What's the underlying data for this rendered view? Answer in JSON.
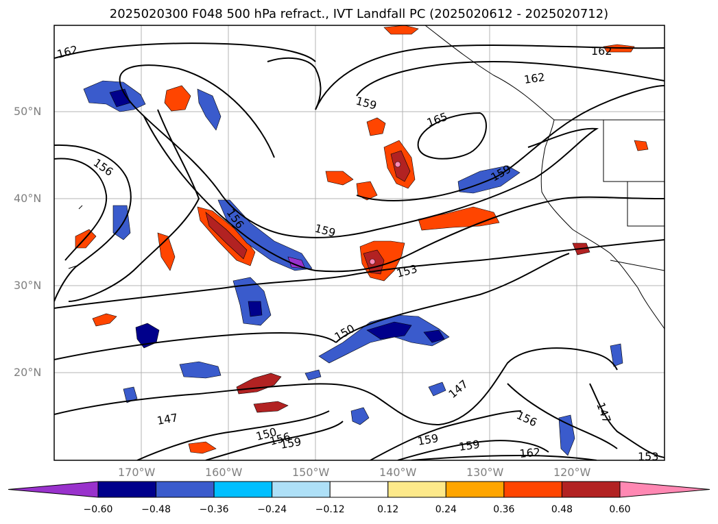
{
  "title": "2025020300 F048 500 hPa refract., IVT Landfall PC (2025020612 - 2025020712)",
  "lat_labels": [
    "50°N",
    "40°N",
    "30°N",
    "20°N"
  ],
  "lon_labels": [
    "170°W",
    "160°W",
    "150°W",
    "140°W",
    "130°W",
    "120°W"
  ],
  "colorbar": {
    "colors": [
      "#9932cc",
      "#00008b",
      "#3a5bcc",
      "#00bfff",
      "#aee0f7",
      "#ffffff",
      "#fde98a",
      "#ffa500",
      "#ff4500",
      "#b22222",
      "#ff88b3"
    ],
    "tick_labels": [
      "−0.60",
      "−0.48",
      "−0.36",
      "−0.24",
      "−0.12",
      "0.12",
      "0.24",
      "0.36",
      "0.48",
      "0.60"
    ]
  },
  "contour_labels": [
    "162",
    "162",
    "162",
    "159",
    "165",
    "159",
    "156",
    "156",
    "159",
    "153",
    "150",
    "147",
    "147",
    "156",
    "150",
    "156",
    "159",
    "159",
    "159",
    "162",
    "147",
    "153"
  ]
}
